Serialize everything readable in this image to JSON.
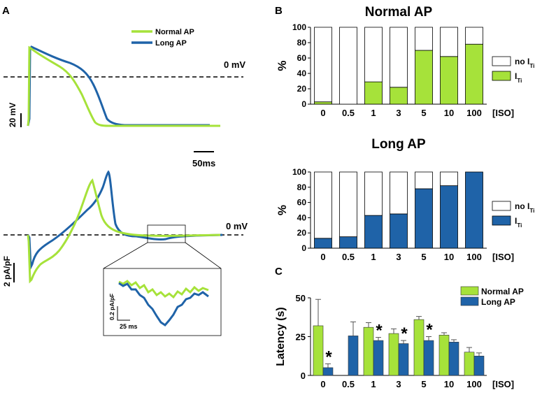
{
  "colors": {
    "normal": "#a6e23a",
    "long": "#1f63a8",
    "noiti": "#ffffff",
    "axis": "#000000",
    "dash": "#000000"
  },
  "panels": {
    "a": {
      "label": "A",
      "legend": {
        "normal": "Normal AP",
        "long": "Long AP"
      },
      "zero_top": "0 mV",
      "zero_bottom": "0 mV",
      "scale_v": "20 mV",
      "scale_t": "50ms",
      "scale_i": "2 pA/pF",
      "inset": {
        "scale_i": "0.2 pA/pF",
        "scale_t": "25 ms"
      }
    },
    "b": {
      "label": "B"
    },
    "c": {
      "label": "C"
    }
  },
  "chart_data": [
    {
      "id": "normal-ap-stacked",
      "type": "bar",
      "title": "Normal AP",
      "ylabel": "%",
      "xlabel": "[ISO]",
      "ylim": [
        0,
        100
      ],
      "yticks": [
        0,
        20,
        40,
        60,
        80,
        100
      ],
      "categories": [
        "0",
        "0.5",
        "1",
        "3",
        "5",
        "10",
        "100"
      ],
      "series": [
        {
          "name": "ITi",
          "values": [
            3,
            0,
            29,
            22,
            70,
            62,
            78
          ]
        },
        {
          "name": "no ITi",
          "values": [
            97,
            100,
            71,
            78,
            30,
            38,
            22
          ]
        }
      ],
      "legend": {
        "noiti": "no I",
        "iti": "I",
        "sub": "Ti"
      }
    },
    {
      "id": "long-ap-stacked",
      "type": "bar",
      "title": "Long AP",
      "ylabel": "%",
      "xlabel": "[ISO]",
      "ylim": [
        0,
        100
      ],
      "yticks": [
        0,
        20,
        40,
        60,
        80,
        100
      ],
      "categories": [
        "0",
        "0.5",
        "1",
        "3",
        "5",
        "10",
        "100"
      ],
      "series": [
        {
          "name": "ITi",
          "values": [
            13,
            15,
            43,
            45,
            78,
            82,
            100
          ]
        },
        {
          "name": "no ITi",
          "values": [
            87,
            85,
            57,
            55,
            22,
            18,
            0
          ]
        }
      ],
      "legend": {
        "noiti": "no I",
        "iti": "I",
        "sub": "Ti"
      }
    },
    {
      "id": "latency",
      "type": "bar",
      "title": "",
      "ylabel": "Latency (s)",
      "xlabel": "[ISO]",
      "ylim": [
        0,
        50
      ],
      "yticks": [
        0,
        25,
        50
      ],
      "categories": [
        "0",
        "0.5",
        "1",
        "3",
        "5",
        "10",
        "100"
      ],
      "series": [
        {
          "name": "Normal AP",
          "values": [
            32,
            null,
            31,
            27,
            36,
            26,
            15
          ],
          "errors": [
            17,
            0,
            3,
            3,
            2,
            1.5,
            3
          ]
        },
        {
          "name": "Long AP",
          "values": [
            5,
            25.5,
            22.5,
            20.5,
            22.5,
            21.5,
            12.5
          ],
          "errors": [
            2.5,
            9,
            2,
            2,
            2.5,
            1.5,
            2
          ]
        }
      ],
      "significance": [
        "*",
        "",
        "*",
        "*",
        "*",
        "",
        ""
      ]
    }
  ]
}
